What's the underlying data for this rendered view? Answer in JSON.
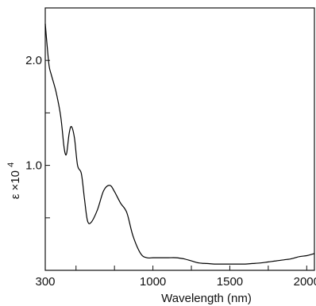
{
  "chart_data": {
    "type": "line",
    "xlabel": "Wavelength (nm)",
    "ylabel": "ε ×10",
    "ylabel_exponent": "4",
    "xlim": [
      300,
      2050
    ],
    "ylim": [
      0,
      2.5
    ],
    "x_ticks": [
      {
        "value": 300,
        "label": "300"
      },
      {
        "value": 500,
        "label": ""
      },
      {
        "value": 750,
        "label": ""
      },
      {
        "value": 1000,
        "label": "1000"
      },
      {
        "value": 1250,
        "label": ""
      },
      {
        "value": 1500,
        "label": "1500"
      },
      {
        "value": 1750,
        "label": ""
      },
      {
        "value": 2000,
        "label": "2000"
      }
    ],
    "y_ticks": [
      {
        "value": 0.5,
        "label": ""
      },
      {
        "value": 1.0,
        "label": "1.0"
      },
      {
        "value": 1.5,
        "label": ""
      },
      {
        "value": 2.0,
        "label": "2.0"
      }
    ],
    "grid": false,
    "legend": "none",
    "series": [
      {
        "color": "#000000",
        "x": [
          300,
          310,
          325,
          340,
          370,
          400,
          420,
          430,
          440,
          455,
          470,
          490,
          510,
          535,
          555,
          575,
          600,
          640,
          680,
          720,
          750,
          790,
          830,
          870,
          920,
          960,
          1000,
          1050,
          1100,
          1150,
          1200,
          1250,
          1300,
          1350,
          1400,
          1450,
          1500,
          1550,
          1600,
          1650,
          1700,
          1750,
          1800,
          1850,
          1900,
          1950,
          2000,
          2050
        ],
        "values": [
          2.35,
          2.18,
          1.95,
          1.86,
          1.7,
          1.47,
          1.2,
          1.11,
          1.12,
          1.3,
          1.37,
          1.26,
          1.0,
          0.92,
          0.68,
          0.47,
          0.46,
          0.58,
          0.76,
          0.81,
          0.75,
          0.64,
          0.55,
          0.33,
          0.16,
          0.12,
          0.12,
          0.12,
          0.12,
          0.12,
          0.11,
          0.09,
          0.07,
          0.065,
          0.06,
          0.06,
          0.06,
          0.06,
          0.06,
          0.065,
          0.07,
          0.08,
          0.09,
          0.1,
          0.11,
          0.13,
          0.14,
          0.16
        ]
      }
    ]
  }
}
